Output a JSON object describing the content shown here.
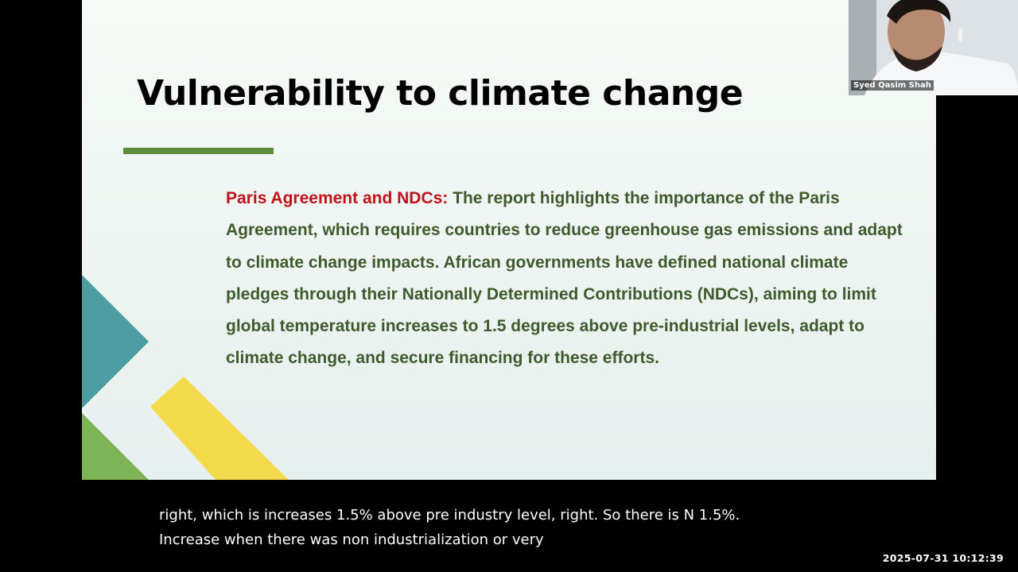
{
  "slide": {
    "title": "Vulnerability to climate change",
    "body_lead": "Paris Agreement and NDCs:",
    "body_text": " The report highlights the importance of the Paris Agreement, which requires countries to reduce greenhouse gas emissions and adapt to climate change impacts. African governments have defined national climate pledges through their Nationally Determined Contributions (NDCs), aiming to limit global temperature increases to 1.5 degrees above pre-industrial levels, adapt to climate change, and secure financing for these efforts."
  },
  "colors": {
    "title_underline": "#5e8a3a",
    "lead_text": "#c0121a",
    "body_text": "#3f5a2c",
    "teal_triangle": "#4a9ea2",
    "green_triangle": "#7cb455",
    "yellow_band": "#f4d94a"
  },
  "participant": {
    "name": "Syed Qasim Shah"
  },
  "captions": {
    "line1": "right, which is increases 1.5% above pre industry level, right. So there is N 1.5%.",
    "line2": "Increase when there was non industrialization or very"
  },
  "recording": {
    "timestamp": "2025-07-31  10:12:39"
  }
}
